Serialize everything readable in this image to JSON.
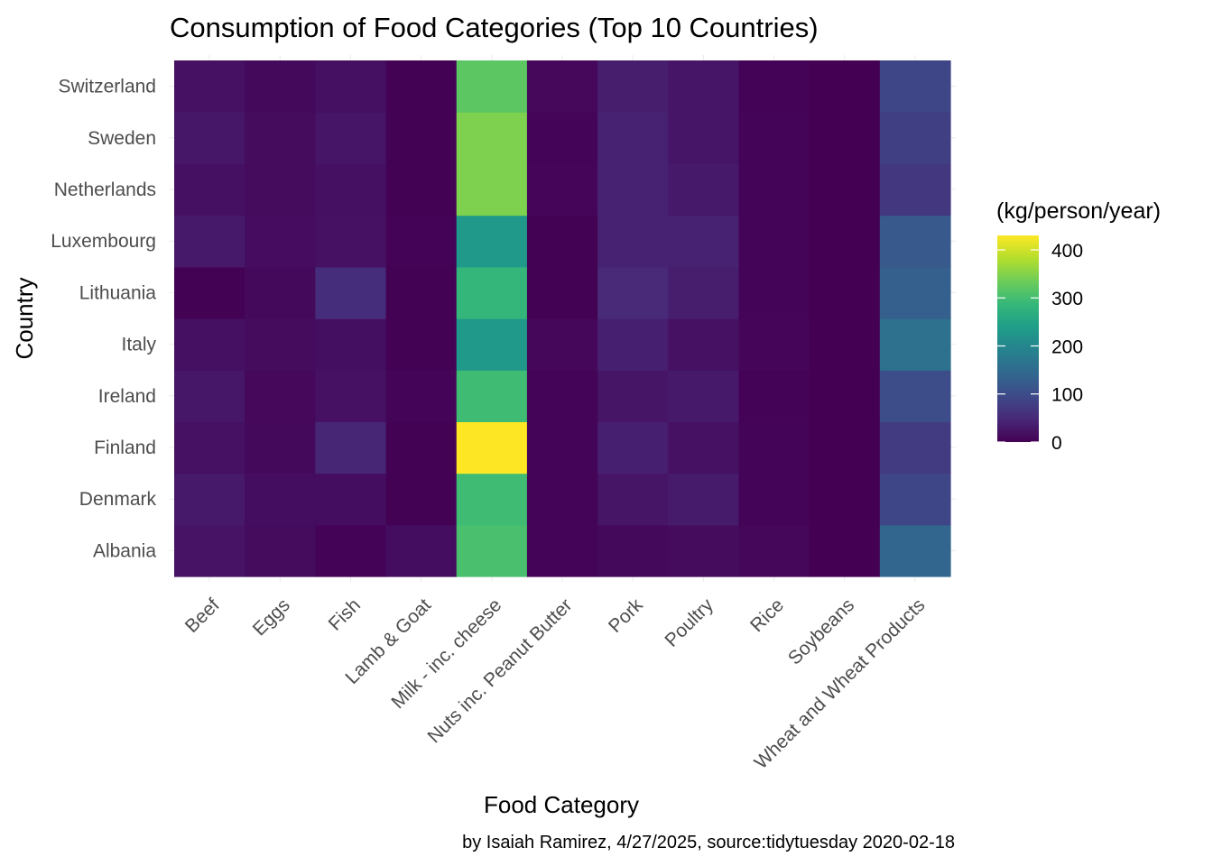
{
  "chart_data": {
    "type": "heatmap",
    "title": "Consumption of Food Categories (Top 10 Countries)",
    "xlabel": "Food Category",
    "ylabel": "Country",
    "caption": "by Isaiah Ramirez, 4/27/2025, source:tidytuesday 2020-02-18",
    "x_categories": [
      "Beef",
      "Eggs",
      "Fish",
      "Lamb & Goat",
      "Milk - inc. cheese",
      "Nuts inc. Peanut Butter",
      "Pork",
      "Poultry",
      "Rice",
      "Soybeans",
      "Wheat and Wheat Products"
    ],
    "y_categories": [
      "Albania",
      "Denmark",
      "Finland",
      "Ireland",
      "Italy",
      "Lithuania",
      "Luxembourg",
      "Netherlands",
      "Sweden",
      "Switzerland"
    ],
    "values": [
      [
        22,
        13,
        3,
        15,
        305,
        4,
        10,
        13,
        7,
        0,
        140
      ],
      [
        29,
        15,
        15,
        1,
        295,
        4,
        24,
        32,
        4,
        0,
        90
      ],
      [
        19,
        10,
        45,
        1,
        430,
        4,
        37,
        20,
        4,
        0,
        75
      ],
      [
        26,
        9,
        20,
        5,
        295,
        4,
        24,
        30,
        3,
        0,
        100
      ],
      [
        18,
        13,
        17,
        1,
        230,
        7,
        37,
        20,
        6,
        0,
        160
      ],
      [
        1,
        10,
        55,
        1,
        285,
        1,
        50,
        35,
        4,
        0,
        130
      ],
      [
        30,
        14,
        20,
        2,
        230,
        1,
        40,
        40,
        4,
        0,
        120
      ],
      [
        18,
        12,
        18,
        1,
        345,
        6,
        40,
        30,
        4,
        0,
        70
      ],
      [
        26,
        13,
        25,
        1,
        345,
        5,
        40,
        25,
        4,
        0,
        80
      ],
      [
        20,
        10,
        18,
        1,
        320,
        8,
        35,
        25,
        3,
        0,
        90
      ]
    ],
    "legend": {
      "title": "(kg/person/year)",
      "ticks": [
        0,
        100,
        200,
        300,
        400
      ],
      "range": [
        0,
        430
      ],
      "palette": "viridis",
      "placement": "right"
    },
    "colors": {
      "viridis_stops": [
        "#440154",
        "#482878",
        "#3E4A89",
        "#31688E",
        "#26828E",
        "#1F9E89",
        "#35B779",
        "#6DCD59",
        "#B4DE2C",
        "#FDE725"
      ],
      "gridline": "#ebebeb",
      "tick_label": "#4d4d4d"
    },
    "grid": true
  }
}
